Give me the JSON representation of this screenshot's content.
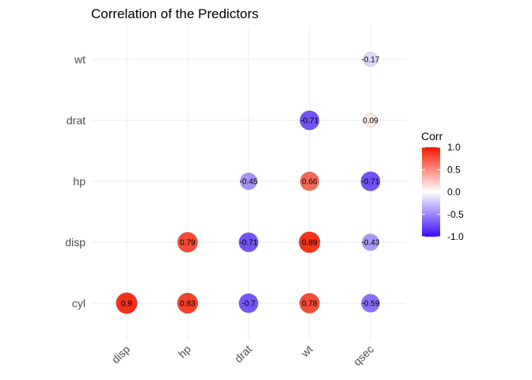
{
  "chart_data": {
    "type": "scatter",
    "subtype": "correlation-matrix-circles",
    "title": "Correlation of the Predictors",
    "x_categories": [
      "disp",
      "hp",
      "drat",
      "wt",
      "qsec"
    ],
    "y_categories": [
      "cyl",
      "disp",
      "hp",
      "drat",
      "wt"
    ],
    "cells": [
      {
        "x": "disp",
        "y": "cyl",
        "value": 0.9,
        "label": "0.9"
      },
      {
        "x": "hp",
        "y": "cyl",
        "value": 0.83,
        "label": "0.83"
      },
      {
        "x": "drat",
        "y": "cyl",
        "value": -0.7,
        "label": "-0.7"
      },
      {
        "x": "wt",
        "y": "cyl",
        "value": 0.78,
        "label": "0.78"
      },
      {
        "x": "qsec",
        "y": "cyl",
        "value": -0.59,
        "label": "-0.59"
      },
      {
        "x": "hp",
        "y": "disp",
        "value": 0.79,
        "label": "0.79"
      },
      {
        "x": "drat",
        "y": "disp",
        "value": -0.71,
        "label": "-0.71"
      },
      {
        "x": "wt",
        "y": "disp",
        "value": 0.89,
        "label": "0.89"
      },
      {
        "x": "qsec",
        "y": "disp",
        "value": -0.43,
        "label": "-0.43"
      },
      {
        "x": "drat",
        "y": "hp",
        "value": -0.45,
        "label": "-0.45"
      },
      {
        "x": "wt",
        "y": "hp",
        "value": 0.66,
        "label": "0.66"
      },
      {
        "x": "qsec",
        "y": "hp",
        "value": -0.71,
        "label": "-0.71"
      },
      {
        "x": "wt",
        "y": "drat",
        "value": -0.71,
        "label": "-0.71"
      },
      {
        "x": "qsec",
        "y": "drat",
        "value": 0.09,
        "label": "0.09"
      },
      {
        "x": "qsec",
        "y": "wt",
        "value": -0.17,
        "label": "-0.17"
      }
    ],
    "legend": {
      "title": "Corr",
      "placement": "right",
      "range": [
        -1.0,
        1.0
      ],
      "ticks": [
        "1.0",
        "0.5",
        "0.0",
        "-0.5",
        "-1.0"
      ],
      "tick_values": [
        1.0,
        0.5,
        0.0,
        -0.5,
        -1.0
      ],
      "color_low": "#3a0cf2",
      "color_mid": "#ffffff",
      "color_high": "#f21a00"
    },
    "grid": true,
    "xlabel": "",
    "ylabel": ""
  }
}
